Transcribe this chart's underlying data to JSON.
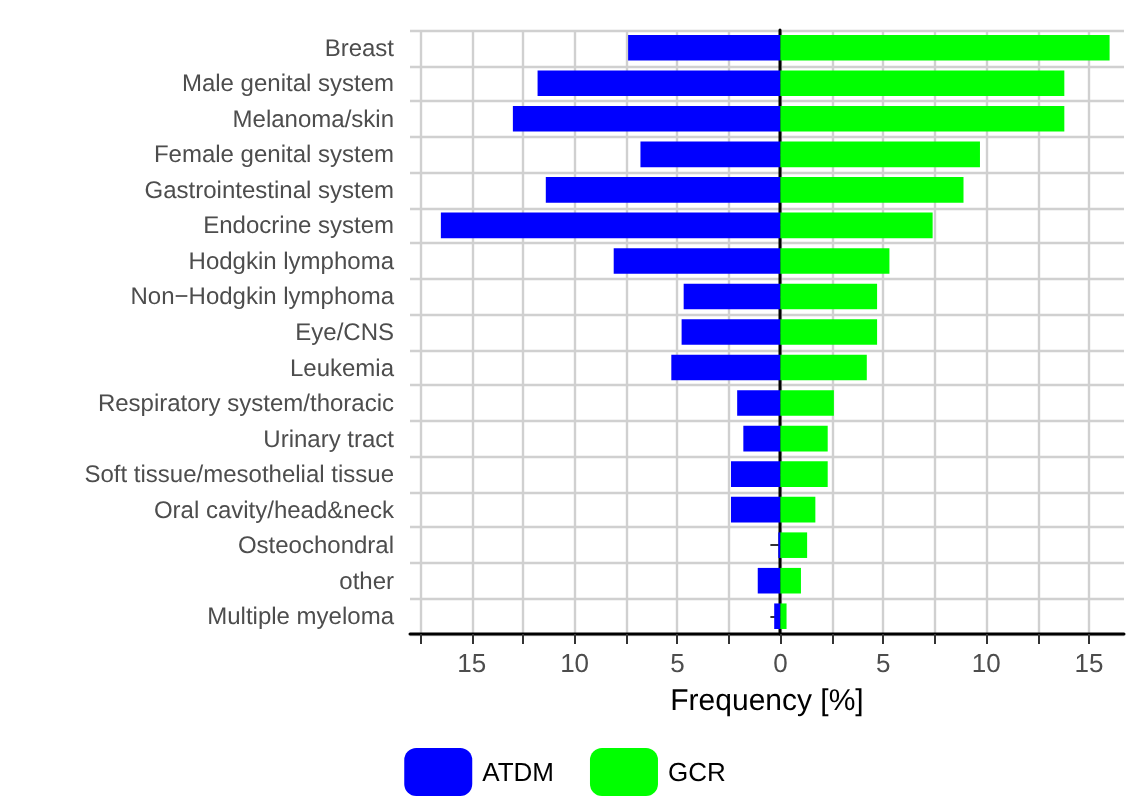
{
  "chart_data": {
    "type": "bar",
    "orientation": "horizontal",
    "stacked": true,
    "xlabel": "Frequency [%]",
    "categories": [
      "Breast",
      "Male genital system",
      "Melanoma/skin",
      "Female genital system",
      "Gastrointestinal system",
      "Endocrine system",
      "Hodgkin lymphoma",
      "Non−Hodgkin lymphoma",
      "Eye/CNS",
      "Leukemia",
      "Respiratory system/thoracic",
      "Urinary tract",
      "Soft tissue/mesothelial tissue",
      "Oral cavity/head&neck",
      "Osteochondral",
      "other",
      "Multiple myeloma"
    ],
    "series": [
      {
        "name": "ATDM",
        "color": "#0000ff",
        "values": [
          -7.4,
          -11.8,
          -13.0,
          -6.8,
          -11.4,
          -16.5,
          -8.1,
          -4.7,
          -4.8,
          -5.3,
          -2.1,
          -1.8,
          -2.4,
          -2.4,
          -0.1,
          -1.1,
          -0.3
        ]
      },
      {
        "name": "GCR",
        "color": "#00ff00",
        "values": [
          16.0,
          13.8,
          13.8,
          9.7,
          8.9,
          7.4,
          5.3,
          4.7,
          4.7,
          4.2,
          2.6,
          2.3,
          2.3,
          1.7,
          1.3,
          1.0,
          0.3
        ]
      }
    ],
    "xlim": [
      -18,
      16.7
    ],
    "xticks": [
      {
        "value": -17.5,
        "label": null
      },
      {
        "value": -15,
        "label": "15"
      },
      {
        "value": -12.5,
        "label": null
      },
      {
        "value": -10,
        "label": "10"
      },
      {
        "value": -7.5,
        "label": null
      },
      {
        "value": -5,
        "label": "5"
      },
      {
        "value": -2.5,
        "label": null
      },
      0,
      {
        "value": 2.5,
        "label": null
      },
      5,
      {
        "value": 7.5,
        "label": null
      },
      10,
      {
        "value": 12.5,
        "label": null
      },
      15
    ],
    "grid": true,
    "legend": "bottom"
  }
}
